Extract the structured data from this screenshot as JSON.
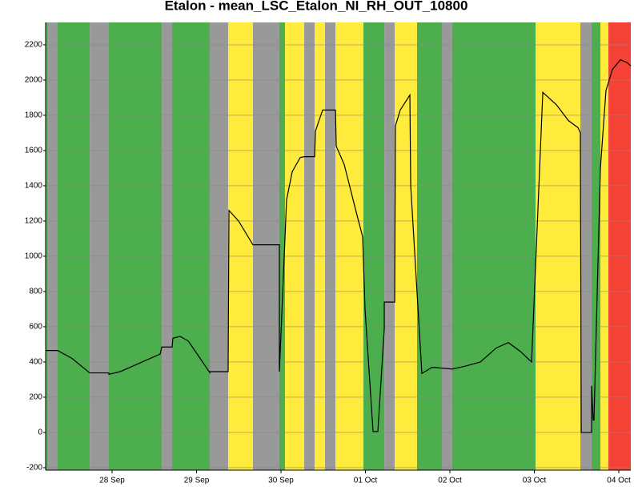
{
  "chart_data": {
    "type": "line",
    "title": "Etalon - mean_LSC_Etalon_NI_RH_OUT_10800",
    "xlim": [
      0.213,
      7.142
    ],
    "xticks": [
      {
        "value": 1,
        "label": "28 Sep"
      },
      {
        "value": 2,
        "label": "29 Sep"
      },
      {
        "value": 3,
        "label": "30 Sep"
      },
      {
        "value": 4,
        "label": "01 Oct"
      },
      {
        "value": 5,
        "label": "02 Oct"
      },
      {
        "value": 6,
        "label": "03 Oct"
      },
      {
        "value": 7,
        "label": "04 Oct"
      }
    ],
    "ylim": [
      -214,
      2327
    ],
    "yticks": [
      -200,
      0,
      200,
      400,
      600,
      800,
      1000,
      1200,
      1400,
      1600,
      1800,
      2000,
      2200
    ],
    "grid": true,
    "bands": [
      {
        "start": 0.213,
        "end": 0.232,
        "color": "#4cae4c"
      },
      {
        "start": 0.232,
        "end": 0.355,
        "color": "#999999"
      },
      {
        "start": 0.355,
        "end": 0.735,
        "color": "#4cae4c"
      },
      {
        "start": 0.735,
        "end": 0.962,
        "color": "#999999"
      },
      {
        "start": 0.962,
        "end": 1.588,
        "color": "#4cae4c"
      },
      {
        "start": 1.588,
        "end": 1.711,
        "color": "#999999"
      },
      {
        "start": 1.711,
        "end": 2.156,
        "color": "#4cae4c"
      },
      {
        "start": 2.156,
        "end": 2.374,
        "color": "#999999"
      },
      {
        "start": 2.374,
        "end": 2.668,
        "color": "#ffeb3b"
      },
      {
        "start": 2.668,
        "end": 2.981,
        "color": "#999999"
      },
      {
        "start": 2.981,
        "end": 3.047,
        "color": "#4cae4c"
      },
      {
        "start": 3.047,
        "end": 3.275,
        "color": "#ffeb3b"
      },
      {
        "start": 3.275,
        "end": 3.398,
        "color": "#999999"
      },
      {
        "start": 3.398,
        "end": 3.521,
        "color": "#ffeb3b"
      },
      {
        "start": 3.521,
        "end": 3.645,
        "color": "#999999"
      },
      {
        "start": 3.645,
        "end": 3.976,
        "color": "#ffeb3b"
      },
      {
        "start": 3.976,
        "end": 4.223,
        "color": "#4cae4c"
      },
      {
        "start": 4.223,
        "end": 4.346,
        "color": "#999999"
      },
      {
        "start": 4.346,
        "end": 4.611,
        "color": "#ffeb3b"
      },
      {
        "start": 4.611,
        "end": 4.905,
        "color": "#4cae4c"
      },
      {
        "start": 4.905,
        "end": 5.028,
        "color": "#999999"
      },
      {
        "start": 5.028,
        "end": 6.014,
        "color": "#4cae4c"
      },
      {
        "start": 6.014,
        "end": 6.545,
        "color": "#ffeb3b"
      },
      {
        "start": 6.545,
        "end": 6.678,
        "color": "#999999"
      },
      {
        "start": 6.678,
        "end": 6.782,
        "color": "#4cae4c"
      },
      {
        "start": 6.782,
        "end": 6.877,
        "color": "#ffeb3b"
      },
      {
        "start": 6.877,
        "end": 7.142,
        "color": "#f44336"
      }
    ],
    "line_color": "#000000",
    "x": [
      0.213,
      0.355,
      0.526,
      0.735,
      0.962,
      0.962,
      1.095,
      1.332,
      1.474,
      1.569,
      1.588,
      1.711,
      1.72,
      1.806,
      1.9,
      2.043,
      2.156,
      2.156,
      2.374,
      2.384,
      2.498,
      2.668,
      2.981,
      2.981,
      3.066,
      3.133,
      3.227,
      3.275,
      3.398,
      3.408,
      3.493,
      3.645,
      3.654,
      3.749,
      3.891,
      3.967,
      3.995,
      4.09,
      4.147,
      4.223,
      4.223,
      4.346,
      4.355,
      4.412,
      4.526,
      4.536,
      4.668,
      4.791,
      4.905,
      5.028,
      5.171,
      5.36,
      5.55,
      5.692,
      5.834,
      5.967,
      6.1,
      6.261,
      6.403,
      6.517,
      6.545,
      6.555,
      6.678,
      6.678,
      6.697,
      6.706,
      6.782,
      6.848,
      6.924,
      7.019,
      7.095,
      7.142
    ],
    "values": [
      465,
      465,
      420,
      338,
      338,
      330,
      345,
      395,
      425,
      445,
      485,
      485,
      535,
      545,
      520,
      420,
      340,
      345,
      345,
      1260,
      1200,
      1065,
      1065,
      345,
      1320,
      1480,
      1560,
      1565,
      1565,
      1710,
      1830,
      1830,
      1625,
      1520,
      1250,
      1110,
      700,
      5,
      5,
      590,
      740,
      740,
      1740,
      1830,
      1915,
      1400,
      335,
      370,
      365,
      360,
      375,
      400,
      480,
      510,
      460,
      400,
      1930,
      1860,
      1770,
      1730,
      1700,
      0,
      0,
      265,
      70,
      70,
      1500,
      1940,
      2060,
      2115,
      2100,
      2080
    ]
  }
}
